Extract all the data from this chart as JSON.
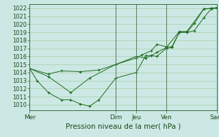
{
  "xlabel": "Pression niveau de la mer( hPa )",
  "background_color": "#cce8e4",
  "plot_bg_color": "#cce8e4",
  "grid_color": "#aaccaa",
  "grid_minor_color": "#bbddbb",
  "line_color": "#1a6b1a",
  "marker_color": "#1a6b1a",
  "spine_color": "#336633",
  "ylim": [
    1009.3,
    1022.5
  ],
  "yticks": [
    1010,
    1011,
    1012,
    1013,
    1014,
    1015,
    1016,
    1017,
    1018,
    1019,
    1020,
    1021,
    1022
  ],
  "day_labels": [
    "Mer",
    "Dim",
    "Jeu",
    "Ven",
    "Sam"
  ],
  "day_positions": [
    0.0,
    0.46,
    0.57,
    0.73,
    1.0
  ],
  "series1_x": [
    0.0,
    0.04,
    0.1,
    0.17,
    0.22,
    0.27,
    0.32,
    0.37,
    0.46,
    0.57,
    0.62,
    0.65,
    0.68,
    0.73,
    0.76,
    0.8,
    0.84,
    0.88,
    0.93,
    0.97,
    1.0
  ],
  "series1_y": [
    1014.5,
    1013.0,
    1011.5,
    1010.6,
    1010.6,
    1010.1,
    1009.8,
    1010.6,
    1013.3,
    1014.0,
    1016.1,
    1016.1,
    1016.0,
    1017.0,
    1017.1,
    1019.0,
    1019.0,
    1020.1,
    1021.9,
    1022.0,
    1022.0
  ],
  "series2_x": [
    0.0,
    0.1,
    0.17,
    0.27,
    0.37,
    0.46,
    0.57,
    0.6,
    0.65,
    0.68,
    0.73,
    0.76,
    0.8,
    0.84,
    0.88,
    0.93,
    0.97,
    1.0
  ],
  "series2_y": [
    1014.5,
    1013.8,
    1014.2,
    1014.1,
    1014.3,
    1015.0,
    1015.8,
    1016.2,
    1016.7,
    1017.5,
    1017.2,
    1017.2,
    1019.0,
    1019.0,
    1019.2,
    1020.8,
    1021.9,
    1022.1
  ],
  "series3_x": [
    0.0,
    0.1,
    0.22,
    0.32,
    0.46,
    0.57,
    0.62,
    0.65,
    0.68,
    0.73,
    0.8,
    0.84,
    0.93,
    1.0
  ],
  "series3_y": [
    1014.5,
    1013.5,
    1011.5,
    1013.3,
    1015.0,
    1016.0,
    1015.8,
    1016.1,
    1016.5,
    1017.1,
    1019.1,
    1019.1,
    1021.9,
    1022.0
  ],
  "xlabel_fontsize": 7.5,
  "tick_fontsize": 6.0,
  "xtick_fontsize": 6.5
}
